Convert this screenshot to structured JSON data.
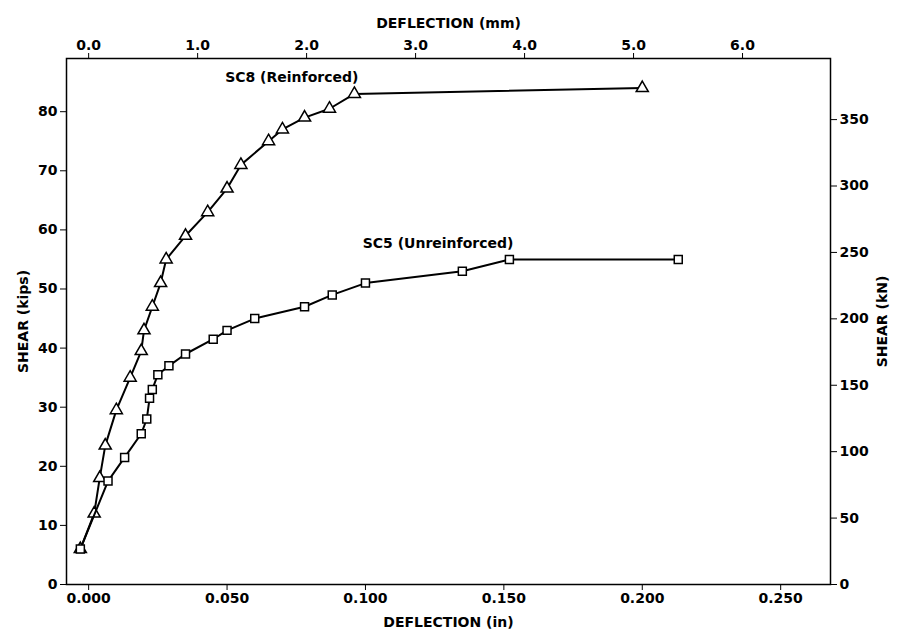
{
  "chart_data": {
    "type": "line",
    "x_label": "DEFLECTION (in)",
    "x2_label": "DEFLECTION (mm)",
    "y_label": "SHEAR (kips)",
    "y2_label": "SHEAR (kN)",
    "xlim": [
      -0.008,
      0.268
    ],
    "xticks": [
      {
        "value": 0,
        "label": "0.000"
      },
      {
        "value": 0.05,
        "label": "0.050"
      },
      {
        "value": 0.1,
        "label": "0.100"
      },
      {
        "value": 0.15,
        "label": "0.150"
      },
      {
        "value": 0.2,
        "label": "0.200"
      },
      {
        "value": 0.25,
        "label": "0.250"
      }
    ],
    "x2lim": [
      -0.2032,
      6.8072
    ],
    "x2ticks": [
      {
        "value": 0,
        "label": "0.0"
      },
      {
        "value": 1,
        "label": "1.0"
      },
      {
        "value": 2,
        "label": "2.0"
      },
      {
        "value": 3,
        "label": "3.0"
      },
      {
        "value": 4,
        "label": "4.0"
      },
      {
        "value": 5,
        "label": "5.0"
      },
      {
        "value": 6,
        "label": "6.0"
      }
    ],
    "ylim": [
      0,
      89
    ],
    "yticks": [
      0,
      10,
      20,
      30,
      40,
      50,
      60,
      70,
      80
    ],
    "y2lim": [
      0,
      396
    ],
    "y2ticks": [
      0,
      50,
      100,
      150,
      200,
      250,
      300,
      350
    ],
    "grid": false,
    "series": [
      {
        "name": "SC8 (Reinforced)",
        "color": "#000000",
        "marker": "triangle",
        "line_style": "solid",
        "x": [
          -0.003,
          0.002,
          0.004,
          0.006,
          0.01,
          0.015,
          0.019,
          0.02,
          0.023,
          0.026,
          0.028,
          0.035,
          0.043,
          0.05,
          0.055,
          0.065,
          0.07,
          0.078,
          0.087,
          0.096,
          0.2
        ],
        "values": [
          6,
          12,
          18,
          23.5,
          29.5,
          35,
          39.5,
          43,
          47,
          51,
          55,
          59,
          63,
          67,
          71,
          75,
          77,
          79,
          80.5,
          83,
          84
        ]
      },
      {
        "name": "SC5 (Unreinforced)",
        "color": "#000000",
        "marker": "square",
        "line_style": "solid",
        "x": [
          -0.003,
          0.007,
          0.013,
          0.019,
          0.021,
          0.022,
          0.023,
          0.025,
          0.029,
          0.035,
          0.045,
          0.05,
          0.06,
          0.078,
          0.088,
          0.1,
          0.135,
          0.152,
          0.213
        ],
        "values": [
          6,
          17.5,
          21.5,
          25.5,
          28,
          31.5,
          33,
          35.5,
          37,
          39,
          41.5,
          43,
          45,
          47,
          49,
          51,
          53,
          55,
          55
        ]
      }
    ]
  }
}
